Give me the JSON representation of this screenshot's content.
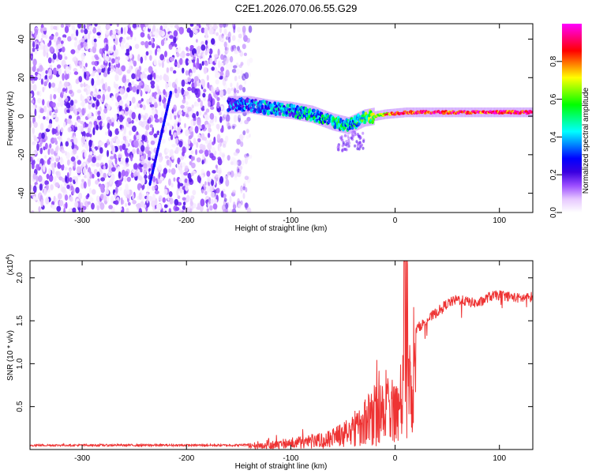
{
  "title": "C2E1.2026.070.06.55.G29",
  "chart_data": [
    {
      "type": "heatmap",
      "title": "C2E1.2026.070.06.55.G29",
      "xlabel": "Height of straight line (km)",
      "ylabel": "Frequency (Hz)",
      "xlim": [
        -350,
        132
      ],
      "ylim": [
        -50,
        48
      ],
      "x_ticks": [
        -300,
        -200,
        -100,
        0,
        100
      ],
      "y_ticks": [
        -40,
        -20,
        0,
        20,
        40
      ],
      "x_tick_labels": [
        "-300",
        "-200",
        "-100",
        "0",
        "100"
      ],
      "y_tick_labels": [
        "-40",
        "-20",
        "0",
        "20",
        "40"
      ],
      "noise_region_x": [
        -350,
        -138
      ],
      "signal_track": [
        {
          "x": -160,
          "f": 6,
          "amp": 0.25
        },
        {
          "x": -140,
          "f": 6,
          "amp": 0.3
        },
        {
          "x": -120,
          "f": 4,
          "amp": 0.35
        },
        {
          "x": -100,
          "f": 3,
          "amp": 0.35
        },
        {
          "x": -80,
          "f": 1,
          "amp": 0.4
        },
        {
          "x": -60,
          "f": -3,
          "amp": 0.45
        },
        {
          "x": -45,
          "f": -5,
          "amp": 0.4
        },
        {
          "x": -30,
          "f": -1,
          "amp": 0.5
        },
        {
          "x": -10,
          "f": 1,
          "amp": 0.75
        },
        {
          "x": 10,
          "f": 2,
          "amp": 0.85
        },
        {
          "x": 40,
          "f": 2,
          "amp": 0.9
        },
        {
          "x": 70,
          "f": 2,
          "amp": 0.9
        },
        {
          "x": 100,
          "f": 2,
          "amp": 0.9
        },
        {
          "x": 132,
          "f": 2,
          "amp": 0.9
        }
      ],
      "streak": {
        "x": [
          -235,
          -215
        ],
        "f": [
          -35,
          12
        ]
      },
      "colorbar": {
        "label": "Normalized spectral amplitude",
        "range": [
          0,
          1
        ],
        "ticks": [
          0.0,
          0.2,
          0.4,
          0.6,
          0.8
        ],
        "tick_labels": [
          "0.0",
          "0.2",
          "0.4",
          "0.6",
          "0.8"
        ],
        "colors": [
          "#ffffff",
          "#e6c8ff",
          "#9b4dff",
          "#3a00e0",
          "#0000ff",
          "#0080ff",
          "#00ffff",
          "#00ff80",
          "#00ff00",
          "#80ff00",
          "#ffff00",
          "#ff8000",
          "#ff0000",
          "#ff0080",
          "#ff00ff"
        ]
      }
    },
    {
      "type": "line",
      "xlabel": "Height of straight line (km)",
      "ylabel": "SNR (10 * v/v)",
      "exponent_label": "(x10",
      "exponent_sup": "4",
      "exponent_close": ")",
      "xlim": [
        -350,
        132
      ],
      "ylim": [
        0,
        2.2
      ],
      "x_ticks": [
        -300,
        -200,
        -100,
        0,
        100
      ],
      "y_ticks": [
        0.5,
        1.0,
        1.5,
        2.0
      ],
      "x_tick_labels": [
        "-300",
        "-200",
        "-100",
        "0",
        "100"
      ],
      "y_tick_labels": [
        "0.5",
        "1.0",
        "1.5",
        "2.0"
      ],
      "color": "#ee3333",
      "series": [
        {
          "name": "SNR",
          "x": [
            -350,
            -300,
            -250,
            -200,
            -150,
            -130,
            -110,
            -90,
            -70,
            -60,
            -50,
            -40,
            -30,
            -20,
            -10,
            0,
            10,
            20,
            30,
            40,
            50,
            60,
            70,
            80,
            90,
            100,
            110,
            120,
            132
          ],
          "y": [
            0.05,
            0.05,
            0.05,
            0.05,
            0.05,
            0.07,
            0.12,
            0.16,
            0.2,
            0.25,
            0.32,
            0.45,
            0.6,
            0.75,
            0.9,
            1.0,
            1.15,
            1.4,
            1.5,
            1.6,
            1.7,
            1.75,
            1.72,
            1.7,
            1.78,
            1.8,
            1.78,
            1.76,
            1.78
          ]
        }
      ]
    }
  ]
}
